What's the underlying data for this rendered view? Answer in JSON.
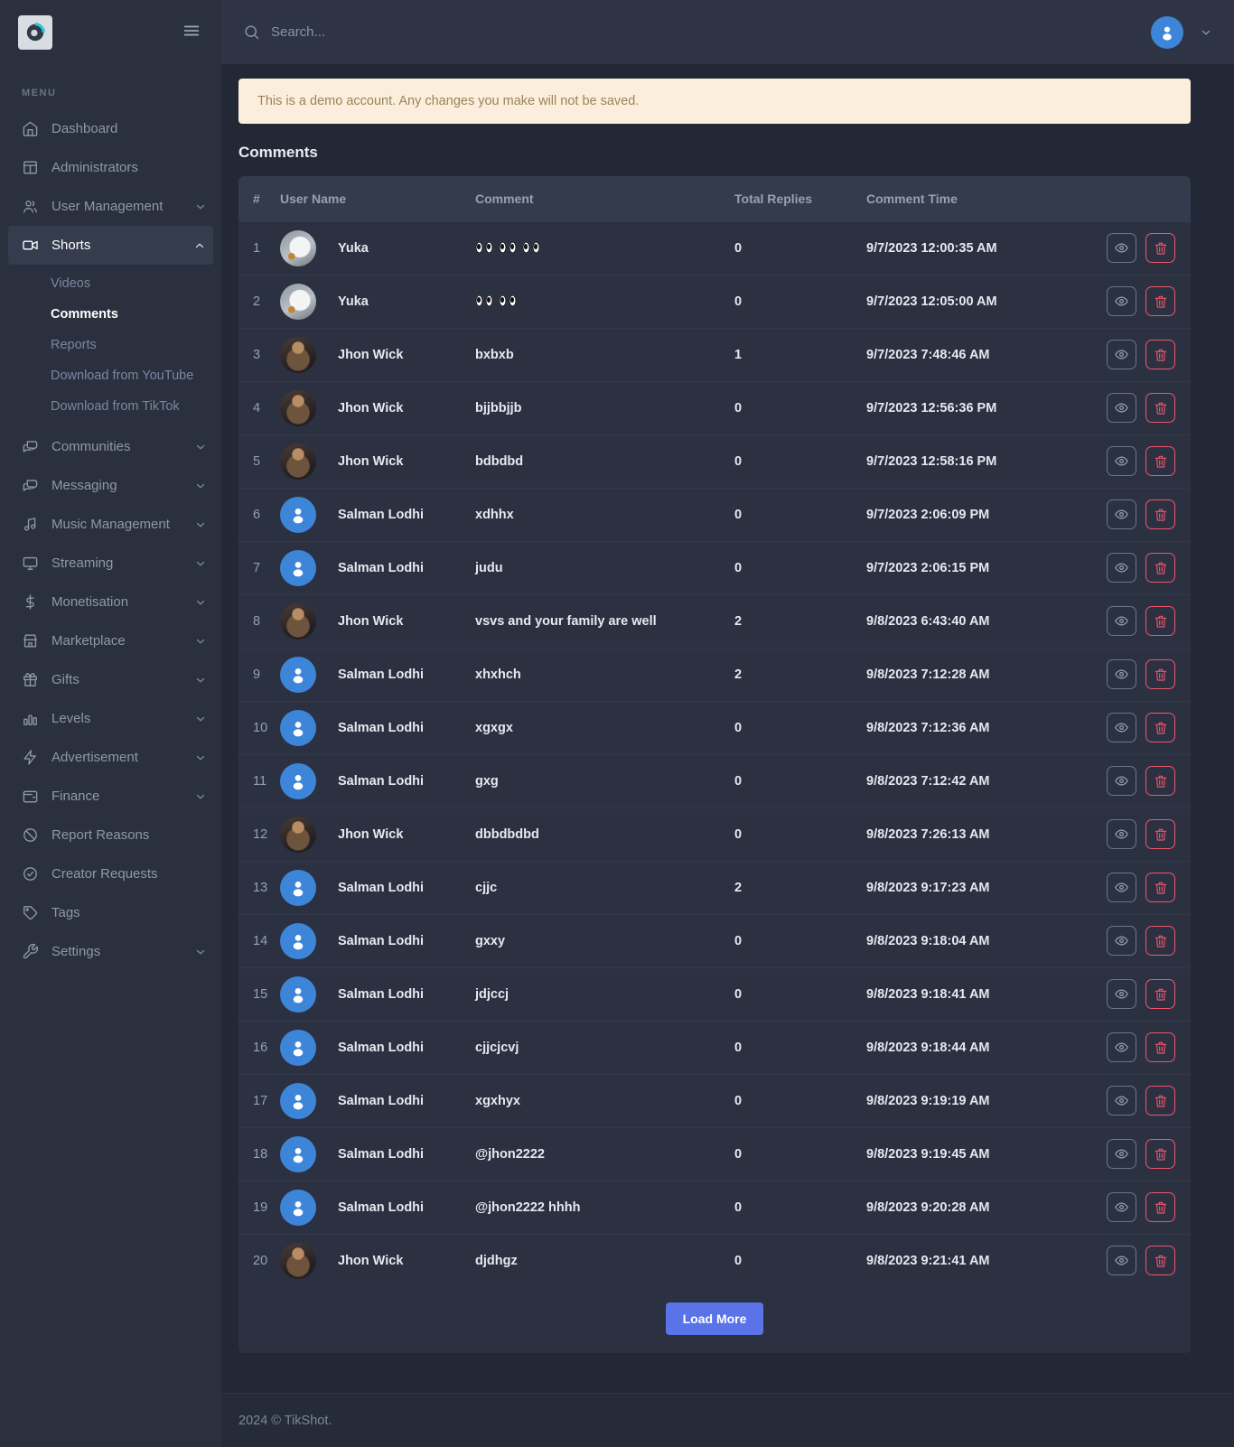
{
  "colors": {
    "sidebar-bg": "#2b303e",
    "topbar-bg": "#2f3444",
    "body-bg": "#232837",
    "card-bg": "#2b3141",
    "thead-bg": "#343b4d",
    "accent": "#5b73e8",
    "danger": "#f1556c",
    "avatar-blue": "#3d85d8",
    "banner-bg": "#fbeedc",
    "banner-text": "#9c8458"
  },
  "sidebar": {
    "menu_label": "MENU",
    "items": [
      {
        "label": "Dashboard",
        "icon": "home"
      },
      {
        "label": "Administrators",
        "icon": "columns"
      },
      {
        "label": "User Management",
        "icon": "users",
        "expandable": true
      },
      {
        "label": "Shorts",
        "icon": "video",
        "expandable": true,
        "expanded": true,
        "active": true,
        "children": [
          {
            "label": "Videos"
          },
          {
            "label": "Comments",
            "active": true
          },
          {
            "label": "Reports"
          },
          {
            "label": "Download from YouTube"
          },
          {
            "label": "Download from TikTok"
          }
        ]
      },
      {
        "label": "Communities",
        "icon": "chats",
        "expandable": true
      },
      {
        "label": "Messaging",
        "icon": "chats",
        "expandable": true
      },
      {
        "label": "Music Management",
        "icon": "music",
        "expandable": true
      },
      {
        "label": "Streaming",
        "icon": "monitor",
        "expandable": true
      },
      {
        "label": "Monetisation",
        "icon": "dollar",
        "expandable": true
      },
      {
        "label": "Marketplace",
        "icon": "store",
        "expandable": true
      },
      {
        "label": "Gifts",
        "icon": "gift",
        "expandable": true
      },
      {
        "label": "Levels",
        "icon": "bar-chart",
        "expandable": true
      },
      {
        "label": "Advertisement",
        "icon": "zap",
        "expandable": true
      },
      {
        "label": "Finance",
        "icon": "wallet",
        "expandable": true
      },
      {
        "label": "Report Reasons",
        "icon": "ban"
      },
      {
        "label": "Creator Requests",
        "icon": "check-circle"
      },
      {
        "label": "Tags",
        "icon": "tag"
      },
      {
        "label": "Settings",
        "icon": "wrench",
        "expandable": true
      }
    ]
  },
  "topbar": {
    "search_placeholder": "Search..."
  },
  "banner": {
    "text": "This is a demo account. Any changes you make will not be saved."
  },
  "page": {
    "title": "Comments"
  },
  "table": {
    "columns": [
      "#",
      "User Name",
      "Comment",
      "Total Replies",
      "Comment Time"
    ],
    "rows": [
      {
        "num": "1",
        "user": "Yuka",
        "avatar": "car",
        "comment": "👀👀👀",
        "replies": "0",
        "time": "9/7/2023 12:00:35 AM"
      },
      {
        "num": "2",
        "user": "Yuka",
        "avatar": "car",
        "comment": "👀👀",
        "replies": "0",
        "time": "9/7/2023 12:05:00 AM"
      },
      {
        "num": "3",
        "user": "Jhon Wick",
        "avatar": "portrait",
        "comment": "bxbxb",
        "replies": "1",
        "time": "9/7/2023 7:48:46 AM"
      },
      {
        "num": "4",
        "user": "Jhon Wick",
        "avatar": "portrait",
        "comment": "bjjbbjjb",
        "replies": "0",
        "time": "9/7/2023 12:56:36 PM"
      },
      {
        "num": "5",
        "user": "Jhon Wick",
        "avatar": "portrait",
        "comment": "bdbdbd",
        "replies": "0",
        "time": "9/7/2023 12:58:16 PM"
      },
      {
        "num": "6",
        "user": "Salman Lodhi",
        "avatar": "default",
        "comment": "xdhhx",
        "replies": "0",
        "time": "9/7/2023 2:06:09 PM"
      },
      {
        "num": "7",
        "user": "Salman Lodhi",
        "avatar": "default",
        "comment": "judu",
        "replies": "0",
        "time": "9/7/2023 2:06:15 PM"
      },
      {
        "num": "8",
        "user": "Jhon Wick",
        "avatar": "portrait",
        "comment": "vsvs and your family are well",
        "replies": "2",
        "time": "9/8/2023 6:43:40 AM"
      },
      {
        "num": "9",
        "user": "Salman Lodhi",
        "avatar": "default",
        "comment": "xhxhch",
        "replies": "2",
        "time": "9/8/2023 7:12:28 AM"
      },
      {
        "num": "10",
        "user": "Salman Lodhi",
        "avatar": "default",
        "comment": "xgxgx",
        "replies": "0",
        "time": "9/8/2023 7:12:36 AM"
      },
      {
        "num": "11",
        "user": "Salman Lodhi",
        "avatar": "default",
        "comment": "gxg",
        "replies": "0",
        "time": "9/8/2023 7:12:42 AM"
      },
      {
        "num": "12",
        "user": "Jhon Wick",
        "avatar": "portrait",
        "comment": "dbbdbdbd",
        "replies": "0",
        "time": "9/8/2023 7:26:13 AM"
      },
      {
        "num": "13",
        "user": "Salman Lodhi",
        "avatar": "default",
        "comment": "cjjc",
        "replies": "2",
        "time": "9/8/2023 9:17:23 AM"
      },
      {
        "num": "14",
        "user": "Salman Lodhi",
        "avatar": "default",
        "comment": "gxxy",
        "replies": "0",
        "time": "9/8/2023 9:18:04 AM"
      },
      {
        "num": "15",
        "user": "Salman Lodhi",
        "avatar": "default",
        "comment": "jdjccj",
        "replies": "0",
        "time": "9/8/2023 9:18:41 AM"
      },
      {
        "num": "16",
        "user": "Salman Lodhi",
        "avatar": "default",
        "comment": "cjjcjcvj",
        "replies": "0",
        "time": "9/8/2023 9:18:44 AM"
      },
      {
        "num": "17",
        "user": "Salman Lodhi",
        "avatar": "default",
        "comment": "xgxhyx",
        "replies": "0",
        "time": "9/8/2023 9:19:19 AM"
      },
      {
        "num": "18",
        "user": "Salman Lodhi",
        "avatar": "default",
        "comment": "@jhon2222",
        "replies": "0",
        "time": "9/8/2023 9:19:45 AM"
      },
      {
        "num": "19",
        "user": "Salman Lodhi",
        "avatar": "default",
        "comment": "@jhon2222 hhhh",
        "replies": "0",
        "time": "9/8/2023 9:20:28 AM"
      },
      {
        "num": "20",
        "user": "Jhon Wick",
        "avatar": "portrait",
        "comment": "djdhgz",
        "replies": "0",
        "time": "9/8/2023 9:21:41 AM"
      }
    ]
  },
  "load_more": {
    "label": "Load More"
  },
  "footer": {
    "text": "2024 © TikShot."
  }
}
